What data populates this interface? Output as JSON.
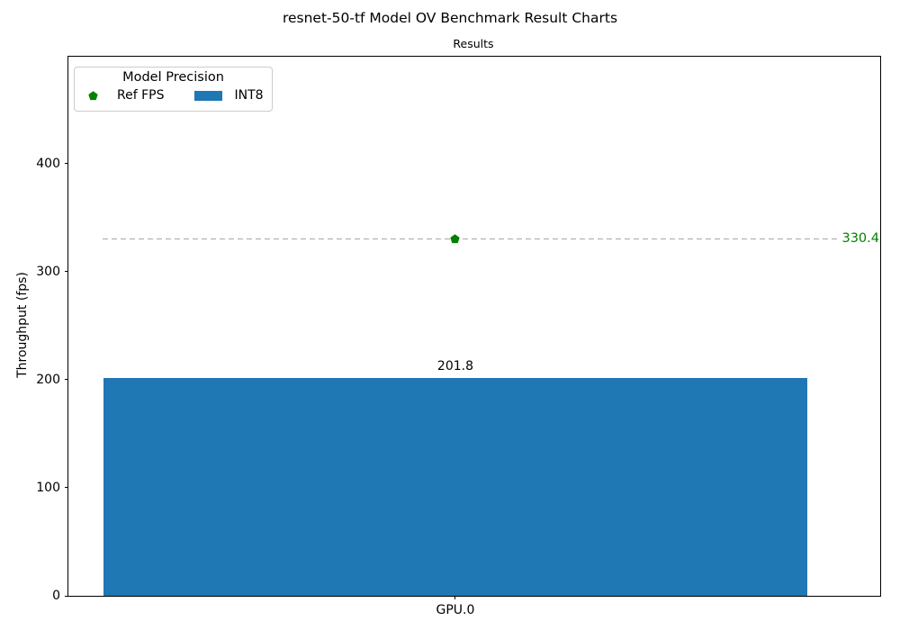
{
  "figure": {
    "title": "resnet-50-tf Model OV Benchmark Result Charts"
  },
  "chart_data": {
    "type": "bar",
    "title": "Results",
    "xlabel": "",
    "ylabel": "Throughput (fps)",
    "categories": [
      "GPU.0"
    ],
    "series": [
      {
        "name": "INT8",
        "values": [
          201.8
        ],
        "color": "#1f77b4",
        "bar_labels": [
          "201.8"
        ]
      }
    ],
    "reference": {
      "name": "Ref FPS",
      "value": 330.4,
      "label": "330.4",
      "color": "#008000",
      "line_color": "#a8a8a8",
      "line_style": "dashed",
      "marker": "pentagon"
    },
    "ylim": [
      0,
      499
    ],
    "yticks": [
      0,
      100,
      200,
      300,
      400
    ],
    "grid": false,
    "legend": {
      "title": "Model Precision",
      "position": "upper left",
      "items": [
        {
          "label": "Ref FPS",
          "marker": "pentagon",
          "color": "#008000"
        },
        {
          "label": "INT8",
          "marker": "rect",
          "color": "#1f77b4"
        }
      ]
    }
  }
}
